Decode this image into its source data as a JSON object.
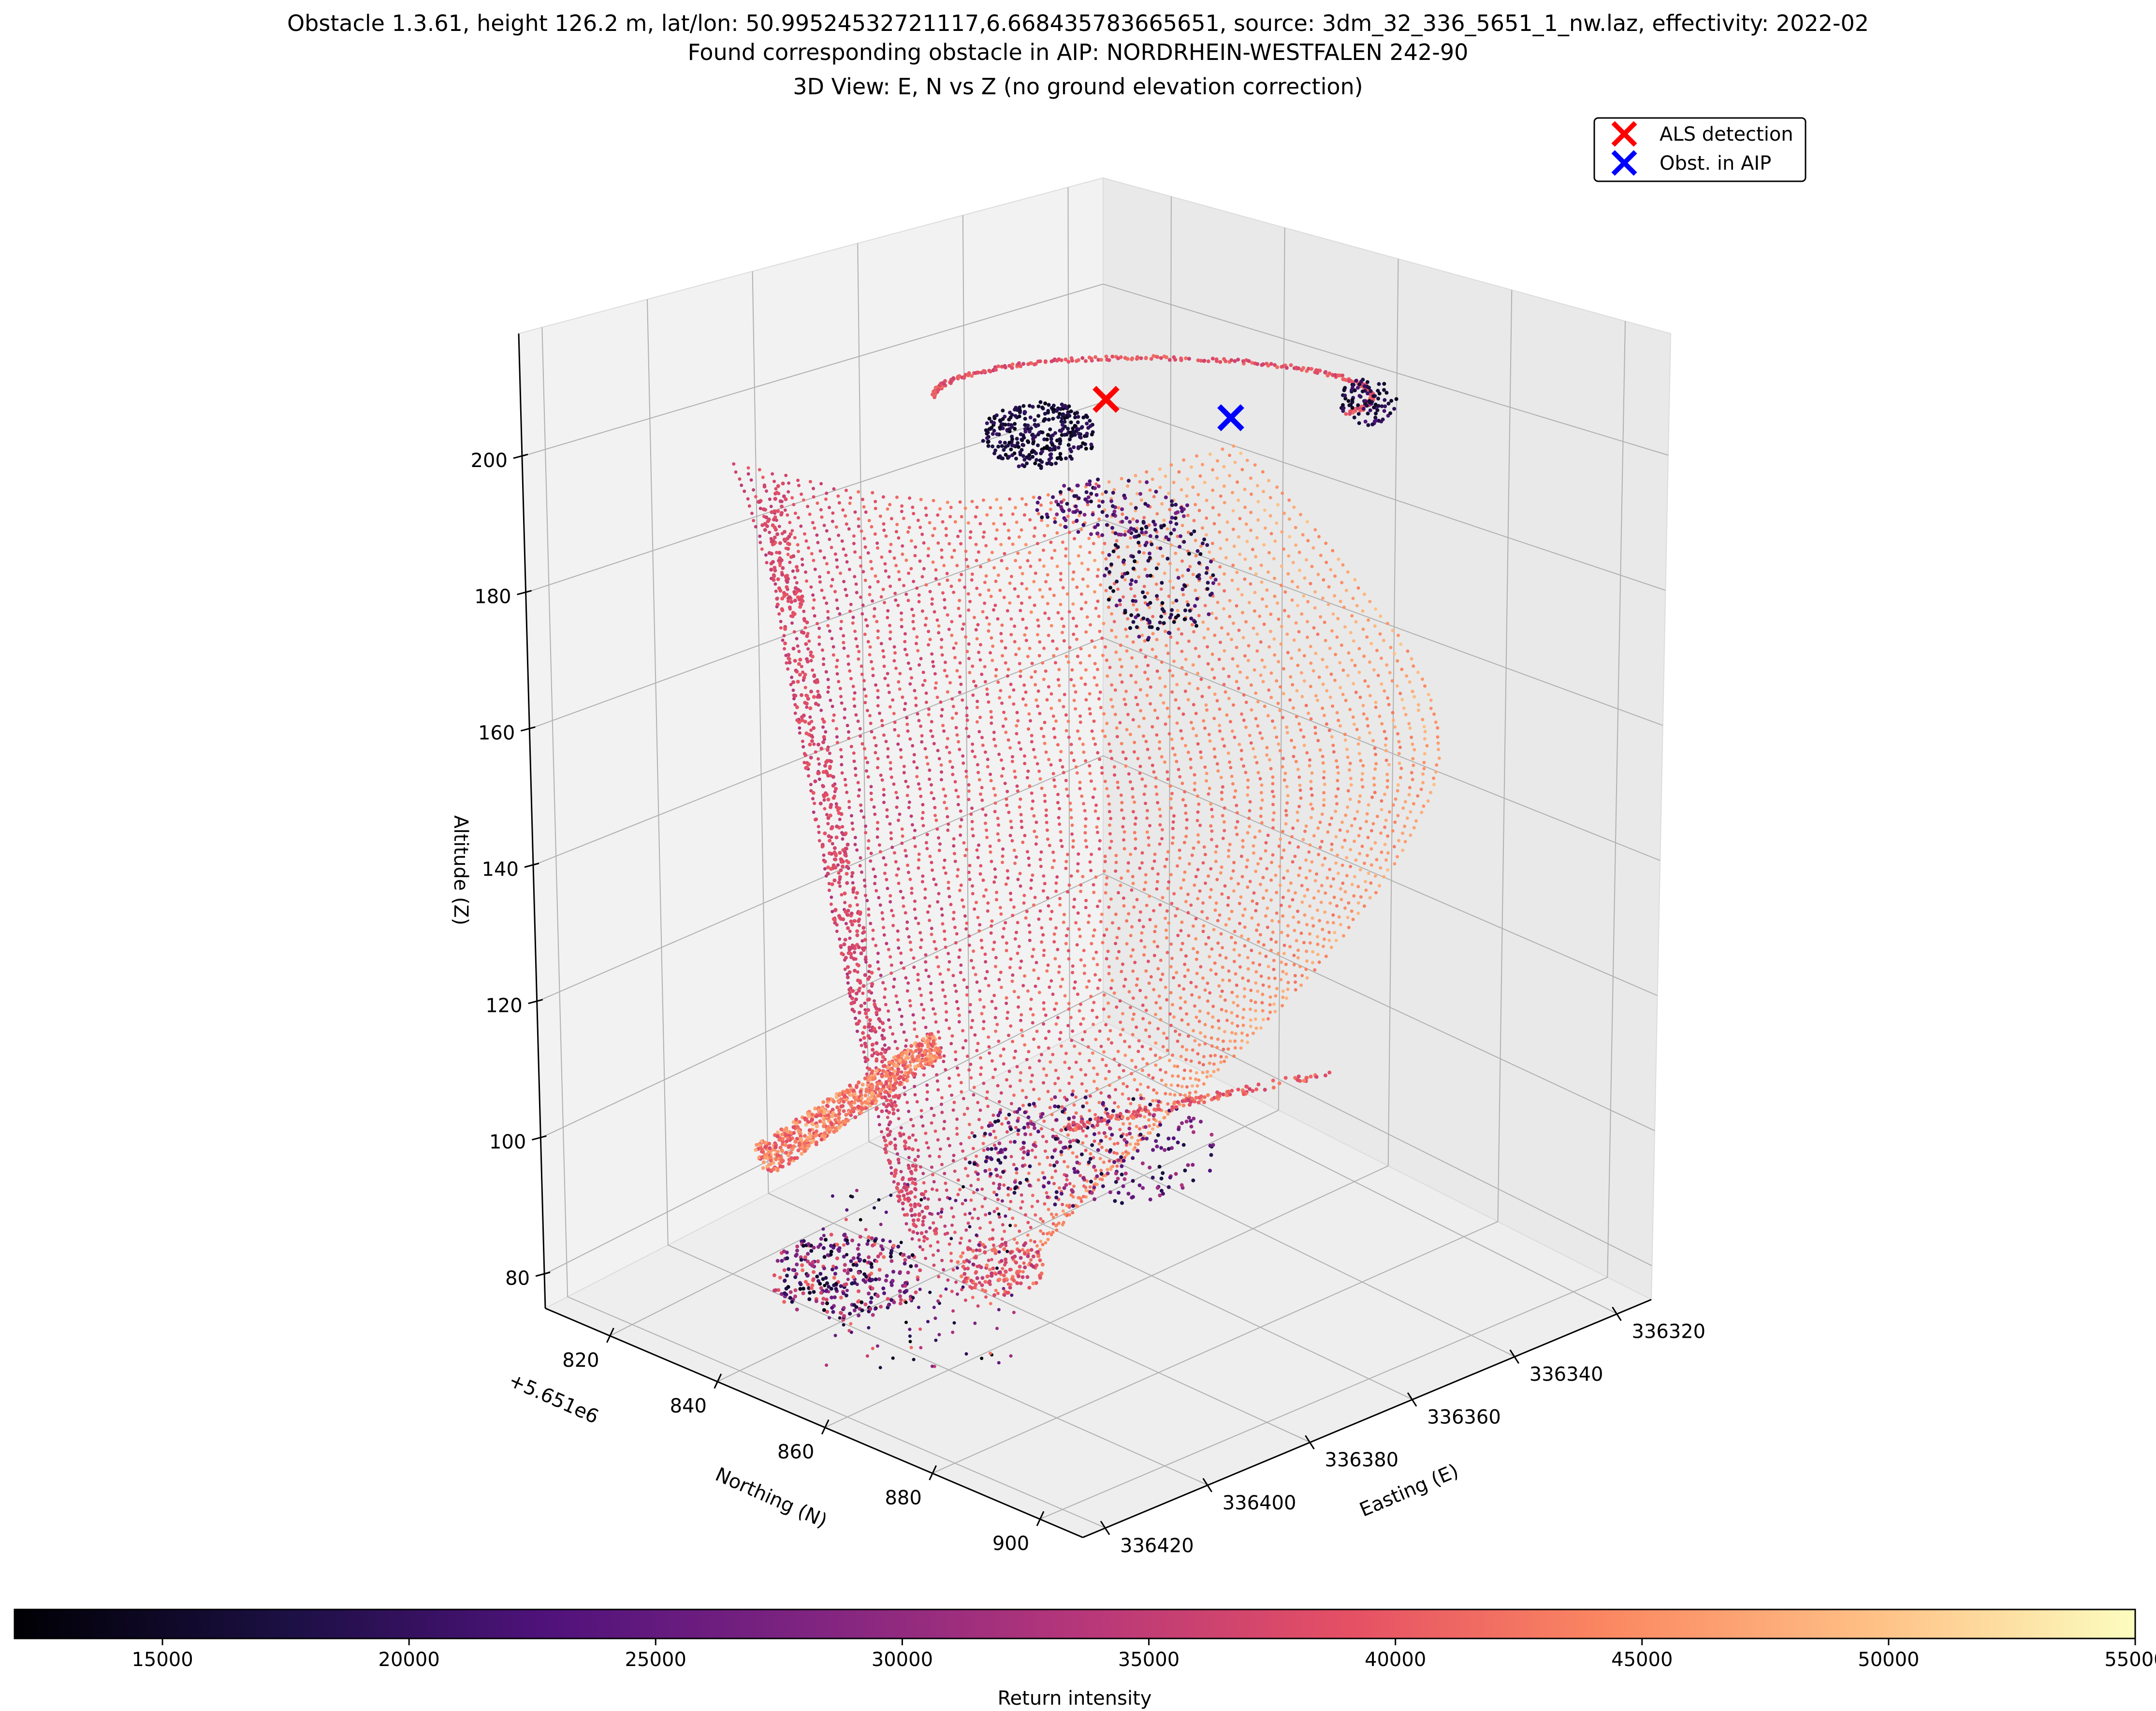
{
  "titles": {
    "line1": "Obstacle 1.3.61, height 126.2 m, lat/lon: 50.99524532721117,6.668435783665651, source: 3dm_32_336_5651_1_nw.laz, effectivity: 2022-02",
    "line2": "Found corresponding obstacle in AIP: NORDRHEIN-WESTFALEN 242-90",
    "line3": "3D View: E, N vs Z (no ground elevation correction)"
  },
  "chart_data": {
    "type": "scatter",
    "projection": "3d",
    "colormap": "magma",
    "zlabel": "Altitude (Z)",
    "ylabel": "Northing (N)",
    "xlabel": "Easting (E)",
    "y_offset_label": "+5.651e6",
    "zticks": [
      "80",
      "100",
      "120",
      "140",
      "160",
      "180",
      "200"
    ],
    "yticks": [
      "820",
      "840",
      "860",
      "880",
      "900"
    ],
    "xticks": [
      "336320",
      "336340",
      "336360",
      "336380",
      "336400",
      "336420"
    ],
    "zlim": [
      75,
      218
    ],
    "grid": true,
    "legend_placement": "top-right",
    "series": [
      {
        "name": "ALS detection",
        "marker": "x",
        "color": "#ff0000",
        "easting": 336344,
        "northing": 5651806,
        "altitude": 207.5
      },
      {
        "name": "Obst. in AIP",
        "marker": "x",
        "color": "#0000ff",
        "easting": 336325,
        "northing": 5651822,
        "altitude": 204.5
      }
    ],
    "point_cloud": {
      "description_color_field": "Return intensity",
      "altitude_range": [
        82,
        207
      ],
      "intensity_range": [
        12000,
        55000
      ]
    },
    "colorbar": {
      "label": "Return intensity",
      "ticks": [
        "15000",
        "20000",
        "25000",
        "30000",
        "35000",
        "40000",
        "45000",
        "50000",
        "55000"
      ],
      "range": [
        12000,
        55000
      ]
    }
  }
}
